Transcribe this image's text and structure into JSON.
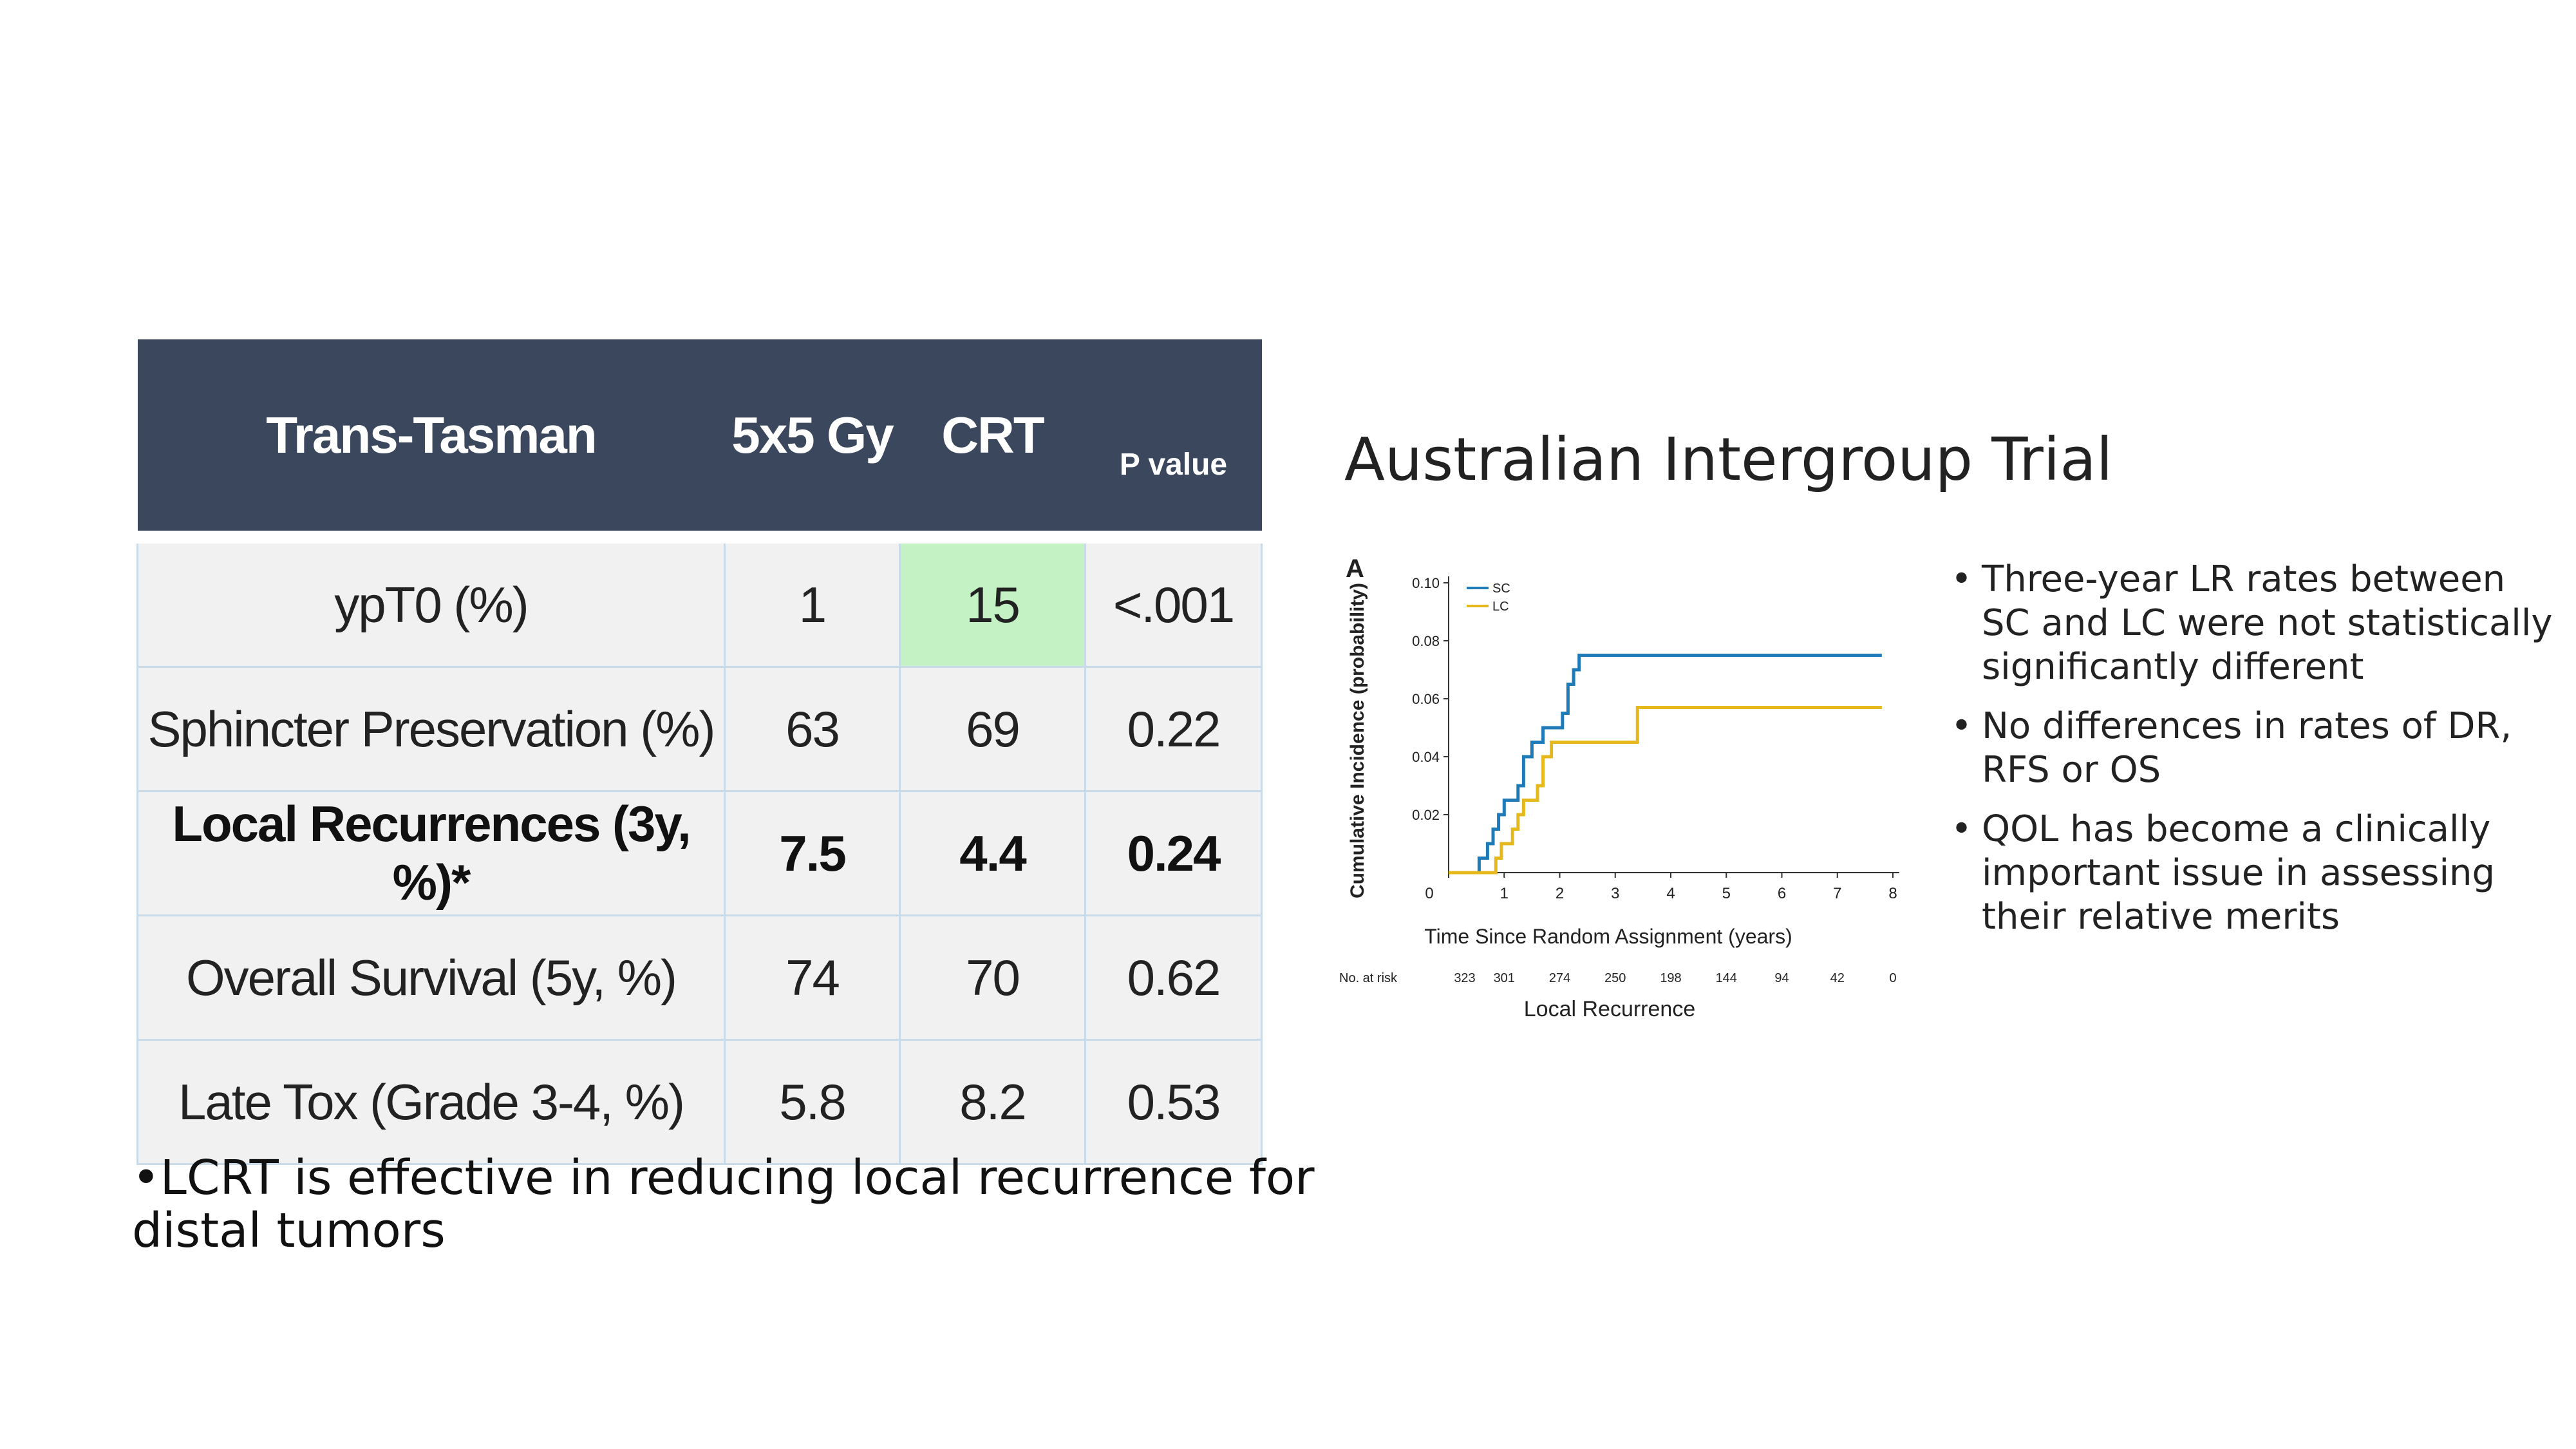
{
  "table": {
    "headers": [
      "Trans-Tasman",
      "5x5 Gy",
      "CRT",
      "P value"
    ],
    "rows": [
      {
        "label": "ypT0 (%)",
        "a": "1",
        "b": "15",
        "p": "<.001"
      },
      {
        "label": "Sphincter Preservation (%)",
        "a": "63",
        "b": "69",
        "p": "0.22"
      },
      {
        "label": "Local Recurrences (3y, %)*",
        "a": "7.5",
        "b": "4.4",
        "p": "0.24"
      },
      {
        "label": "Overall Survival (5y, %)",
        "a": "74",
        "b": "70",
        "p": "0.62"
      },
      {
        "label": "Late Tox (Grade 3-4, %)",
        "a": "5.8",
        "b": "8.2",
        "p": "0.53"
      }
    ],
    "highlight_color": "#c4f2c4",
    "header_color": "#3a475d"
  },
  "left_bullet": "•LCRT is effective in reducing local recurrence for distal tumors",
  "right_title": "Australian Intergroup Trial",
  "chart_data": {
    "type": "line",
    "panel_label": "A",
    "title": "Local Recurrence",
    "xlabel": "Time Since Random Assignment (years)",
    "ylabel": "Cumulative Incidence (probability)",
    "xlim": [
      0,
      8
    ],
    "ylim": [
      0,
      0.1
    ],
    "x_ticks": [
      0,
      1,
      2,
      3,
      4,
      5,
      6,
      7,
      8
    ],
    "y_ticks": [
      0.02,
      0.04,
      0.06,
      0.08,
      0.1
    ],
    "y_tick_labels": [
      "0.02",
      "0.04",
      "0.06",
      "0.08",
      "0.10"
    ],
    "legend_position": "top-left",
    "at_risk_label": "No. at risk",
    "at_risk": [
      "323",
      "301",
      "274",
      "250",
      "198",
      "144",
      "94",
      "42",
      "0"
    ],
    "series": [
      {
        "name": "SC",
        "color": "#1f7ab8",
        "points": [
          [
            0,
            0
          ],
          [
            0.55,
            0
          ],
          [
            0.55,
            0.005
          ],
          [
            0.7,
            0.005
          ],
          [
            0.7,
            0.01
          ],
          [
            0.8,
            0.01
          ],
          [
            0.8,
            0.015
          ],
          [
            0.9,
            0.015
          ],
          [
            0.9,
            0.02
          ],
          [
            1.0,
            0.02
          ],
          [
            1.0,
            0.025
          ],
          [
            1.25,
            0.025
          ],
          [
            1.25,
            0.03
          ],
          [
            1.35,
            0.03
          ],
          [
            1.35,
            0.04
          ],
          [
            1.5,
            0.04
          ],
          [
            1.5,
            0.045
          ],
          [
            1.7,
            0.045
          ],
          [
            1.7,
            0.05
          ],
          [
            2.05,
            0.05
          ],
          [
            2.05,
            0.055
          ],
          [
            2.15,
            0.055
          ],
          [
            2.15,
            0.065
          ],
          [
            2.25,
            0.065
          ],
          [
            2.25,
            0.07
          ],
          [
            2.35,
            0.07
          ],
          [
            2.35,
            0.075
          ],
          [
            7.8,
            0.075
          ]
        ]
      },
      {
        "name": "LC",
        "color": "#e5b91c",
        "points": [
          [
            0,
            0
          ],
          [
            0.85,
            0
          ],
          [
            0.85,
            0.005
          ],
          [
            0.95,
            0.005
          ],
          [
            0.95,
            0.01
          ],
          [
            1.15,
            0.01
          ],
          [
            1.15,
            0.015
          ],
          [
            1.25,
            0.015
          ],
          [
            1.25,
            0.02
          ],
          [
            1.35,
            0.02
          ],
          [
            1.35,
            0.025
          ],
          [
            1.6,
            0.025
          ],
          [
            1.6,
            0.03
          ],
          [
            1.7,
            0.03
          ],
          [
            1.7,
            0.04
          ],
          [
            1.85,
            0.04
          ],
          [
            1.85,
            0.045
          ],
          [
            3.4,
            0.045
          ],
          [
            3.4,
            0.057
          ],
          [
            7.8,
            0.057
          ]
        ]
      }
    ]
  },
  "right_bullets": [
    "Three-year LR rates between SC and LC were not statistically significantly different",
    "No differences in rates of DR, RFS or OS",
    "QOL has become a clinically important issue in assessing their relative merits"
  ],
  "bullet_glyph": "•"
}
